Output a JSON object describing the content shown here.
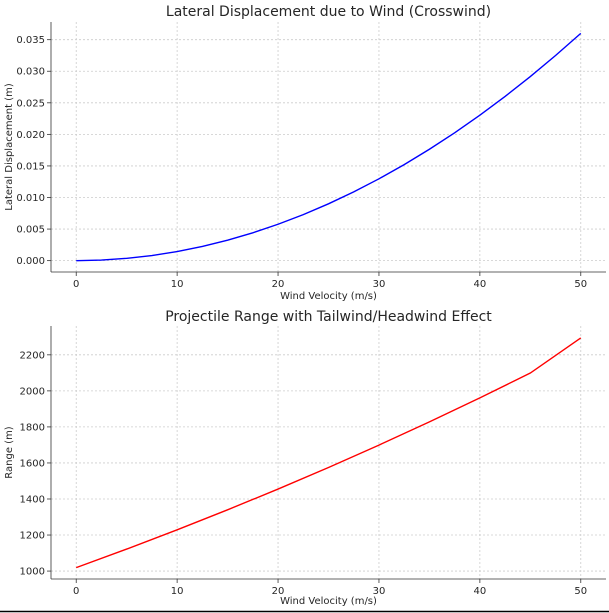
{
  "chart_data": [
    {
      "type": "line",
      "title": "Lateral Displacement due to Wind (Crosswind)",
      "xlabel": "Wind Velocity (m/s)",
      "ylabel": "Lateral Displacement (m)",
      "xlim": [
        -2.5,
        52.5
      ],
      "ylim": [
        -0.0018,
        0.0378
      ],
      "xticks": [
        0,
        10,
        20,
        30,
        40,
        50
      ],
      "yticks": [
        0.0,
        0.005,
        0.01,
        0.015,
        0.02,
        0.025,
        0.03,
        0.035
      ],
      "ytick_labels": [
        "0.000",
        "0.005",
        "0.010",
        "0.015",
        "0.020",
        "0.025",
        "0.030",
        "0.035"
      ],
      "grid": true,
      "series": [
        {
          "color": "#0000ff",
          "x": [
            0,
            2.5,
            5,
            7.5,
            10,
            12.5,
            15,
            17.5,
            20,
            22.5,
            25,
            27.5,
            30,
            32.5,
            35,
            37.5,
            40,
            42.5,
            45,
            47.5,
            50
          ],
          "y": [
            0,
            9e-05,
            0.00036,
            0.00081,
            0.00144,
            0.00225,
            0.00324,
            0.00441,
            0.00576,
            0.00729,
            0.009,
            0.01089,
            0.01296,
            0.01521,
            0.01764,
            0.02025,
            0.02304,
            0.02601,
            0.02916,
            0.03249,
            0.036
          ]
        }
      ]
    },
    {
      "type": "line",
      "title": "Projectile Range with Tailwind/Headwind Effect",
      "xlabel": "Wind Velocity (m/s)",
      "ylabel": "Range (m)",
      "xlim": [
        -2.5,
        52.5
      ],
      "ylim": [
        956,
        2360
      ],
      "xticks": [
        0,
        10,
        20,
        30,
        40,
        50
      ],
      "yticks": [
        1000,
        1200,
        1400,
        1600,
        1800,
        2000,
        2200
      ],
      "ytick_labels": [
        "1000",
        "1200",
        "1400",
        "1600",
        "1800",
        "2000",
        "2200"
      ],
      "grid": true,
      "series": [
        {
          "color": "#ff0000",
          "x": [
            0,
            5,
            10,
            15,
            20,
            25,
            30,
            35,
            40,
            45,
            50
          ],
          "y": [
            1019,
            1122,
            1229,
            1340,
            1455,
            1575,
            1699,
            1828,
            1961,
            2099,
            2294
          ]
        }
      ]
    }
  ]
}
